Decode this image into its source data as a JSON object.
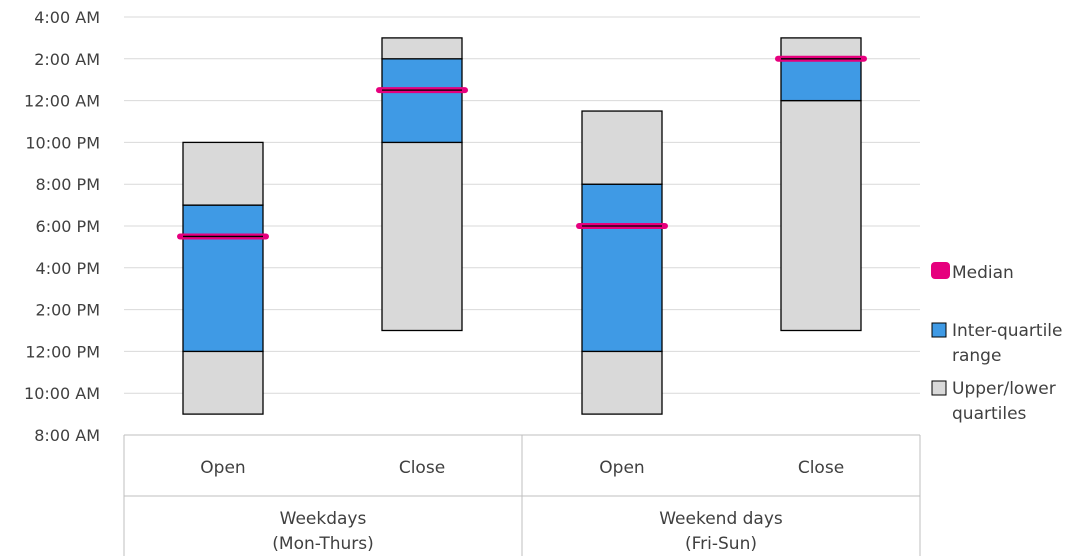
{
  "chart_data": {
    "type": "bar",
    "subtype": "stacked-floating-box",
    "y_axis": {
      "ticks": [
        "8:00 AM",
        "10:00 AM",
        "12:00 PM",
        "2:00 PM",
        "4:00 PM",
        "6:00 PM",
        "8:00 PM",
        "10:00 PM",
        "12:00 AM",
        "2:00 AM",
        "4:00 AM"
      ],
      "range_hours": [
        8,
        28
      ],
      "gridlines": true
    },
    "x_axis": {
      "groups": [
        {
          "label_line1": "Weekdays",
          "label_line2": "(Mon-Thurs)",
          "categories": [
            "Open",
            "Close"
          ]
        },
        {
          "label_line1": "Weekend days",
          "label_line2": "(Fri-Sun)",
          "categories": [
            "Open",
            "Close"
          ]
        }
      ]
    },
    "bars": [
      {
        "group": "Weekdays (Mon-Thurs)",
        "category": "Open",
        "min": 9,
        "q1": 12,
        "median": 17.5,
        "q3": 19,
        "max": 22
      },
      {
        "group": "Weekdays (Mon-Thurs)",
        "category": "Close",
        "min": 13,
        "q1": 22,
        "median": 24.5,
        "q3": 26,
        "max": 27
      },
      {
        "group": "Weekend days (Fri-Sun)",
        "category": "Open",
        "min": 9,
        "q1": 12,
        "median": 18,
        "q3": 20,
        "max": 23.5
      },
      {
        "group": "Weekend days (Fri-Sun)",
        "category": "Close",
        "min": 13,
        "q1": 24,
        "median": 26,
        "q3": 26,
        "max": 27
      }
    ],
    "legend": {
      "placement": "right",
      "entries": [
        {
          "key": "median",
          "line1": "Median",
          "line2": "",
          "color": "#e6007e"
        },
        {
          "key": "iqr",
          "line1": "Inter-quartile",
          "line2": "range",
          "color": "#3f9ae5"
        },
        {
          "key": "quartiles",
          "line1": "Upper/lower",
          "line2": "quartiles",
          "color": "#d9d9d9"
        }
      ]
    },
    "colors": {
      "iqr": "#3f9ae5",
      "quartiles": "#d9d9d9",
      "median": "#e6007e",
      "gridline": "#d9d9d9",
      "text": "#404040"
    }
  }
}
